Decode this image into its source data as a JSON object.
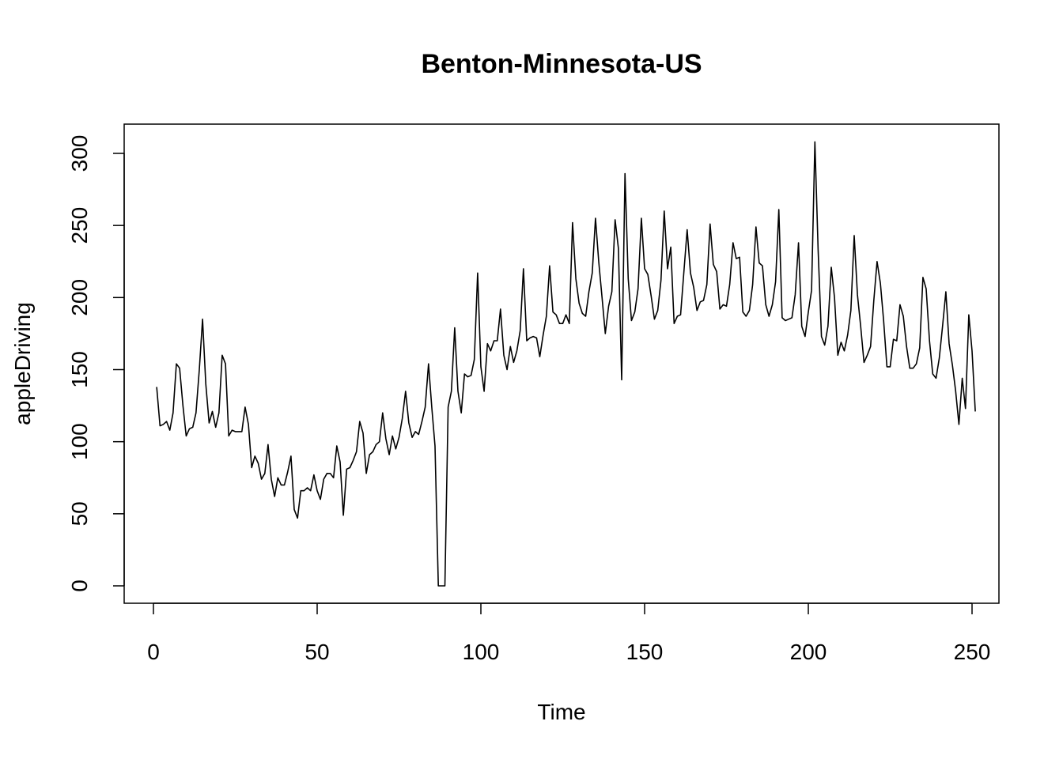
{
  "chart_data": {
    "type": "line",
    "title": "Benton-Minnesota-US",
    "xlabel": "Time",
    "ylabel": "appleDriving",
    "xlim": [
      1,
      249
    ],
    "ylim": [
      0,
      308
    ],
    "xticks": [
      0,
      50,
      100,
      150,
      200,
      250
    ],
    "yticks": [
      0,
      50,
      100,
      150,
      200,
      250,
      300
    ],
    "grid": false,
    "series": [
      {
        "x_start": 1,
        "values": [
          138,
          111,
          112,
          114,
          108,
          120,
          154,
          151,
          125,
          104,
          109,
          110,
          120,
          150,
          185,
          140,
          113,
          121,
          110,
          120,
          160,
          154,
          104,
          108,
          107,
          107,
          107,
          124,
          112,
          82,
          90,
          85,
          74,
          78,
          98,
          74,
          62,
          75,
          70,
          70,
          79,
          90,
          53,
          47,
          66,
          66,
          68,
          66,
          77,
          66,
          60,
          74,
          78,
          78,
          75,
          97,
          86,
          49,
          81,
          82,
          87,
          93,
          114,
          106,
          78,
          91,
          93,
          98,
          100,
          120,
          102,
          91,
          104,
          95,
          103,
          116,
          135,
          113,
          103,
          107,
          105,
          114,
          124,
          154,
          124,
          97,
          0,
          0,
          0,
          124,
          135,
          179,
          135,
          120,
          147,
          145,
          146,
          157,
          217,
          152,
          135,
          168,
          163,
          170,
          170,
          192,
          160,
          150,
          166,
          155,
          163,
          177,
          220,
          170,
          172,
          173,
          172,
          159,
          174,
          187,
          222,
          190,
          188,
          182,
          182,
          188,
          182,
          252,
          213,
          196,
          189,
          187,
          204,
          217,
          255,
          225,
          200,
          175,
          194,
          204,
          254,
          234,
          143,
          286,
          213,
          184,
          190,
          206,
          255,
          220,
          216,
          201,
          185,
          191,
          212,
          260,
          220,
          235,
          182,
          187,
          188,
          218,
          247,
          217,
          207,
          191,
          197,
          198,
          209,
          251,
          223,
          218,
          192,
          195,
          194,
          209,
          238,
          227,
          228,
          190,
          187,
          191,
          209,
          249,
          224,
          222,
          195,
          187,
          195,
          211,
          261,
          186,
          184,
          185,
          186,
          202,
          238,
          180,
          173,
          190,
          205,
          308,
          233,
          173,
          167,
          180,
          221,
          200,
          160,
          169,
          163,
          174,
          191,
          243,
          202,
          180,
          155,
          160,
          166,
          198,
          225,
          210,
          184,
          152,
          152,
          171,
          170,
          195,
          187,
          166,
          151,
          151,
          154,
          165,
          214,
          206,
          170,
          147,
          144,
          158,
          180,
          204,
          168,
          153,
          135,
          112,
          144,
          123,
          188,
          163,
          121
        ]
      }
    ]
  }
}
